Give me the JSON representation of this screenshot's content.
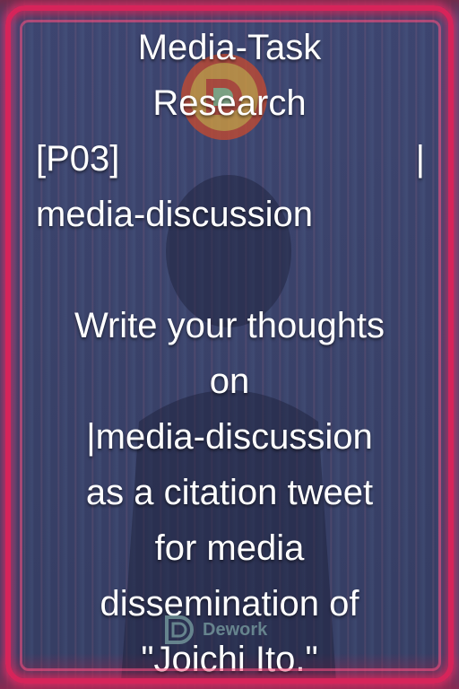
{
  "title": {
    "line1": "Media-Task",
    "line2": "Research",
    "tag": "[P03]",
    "pipe": "|",
    "channel": "media-discussion"
  },
  "body": {
    "lines": [
      "Write your thoughts",
      "on",
      "|media-discussion",
      "as a citation tweet",
      "for media",
      "dissemination of",
      "\"Joichi Ito.\""
    ]
  },
  "watermark": {
    "text": "Dework",
    "icon": "dework-logo-icon"
  },
  "logo": {
    "icon": "dework-logo-icon"
  },
  "colors": {
    "frame": "#d6245a",
    "background": "#3a426a",
    "text": "#ffffff"
  }
}
